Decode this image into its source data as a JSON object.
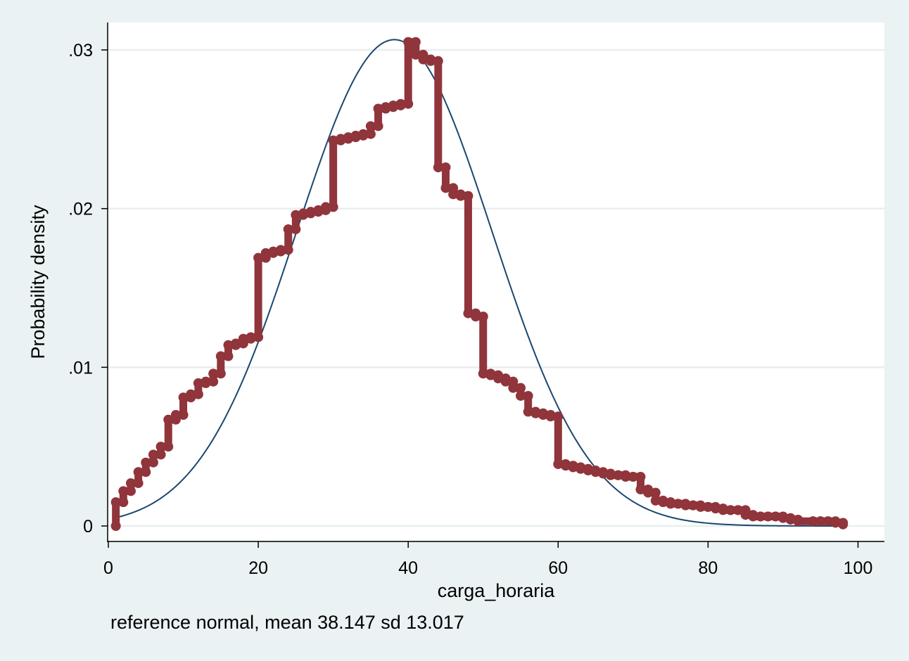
{
  "chart_data": {
    "type": "line",
    "xlabel": "carga_horaria",
    "ylabel": "Probability density",
    "note": "reference normal, mean 38.147 sd 13.017",
    "xlim": [
      0,
      100
    ],
    "ylim": [
      0,
      0.031
    ],
    "x_ticks": [
      0,
      20,
      40,
      60,
      80,
      100
    ],
    "x_tick_labels": [
      "0",
      "20",
      "40",
      "60",
      "80",
      "100"
    ],
    "y_ticks": [
      0,
      0.01,
      0.02,
      0.03
    ],
    "y_tick_labels": [
      "0",
      ".01",
      ".02",
      ".03"
    ],
    "grid": true,
    "normal_reference": {
      "mean": 38.147,
      "sd": 13.017,
      "x_range": [
        1,
        98
      ],
      "color": "#1a476f"
    },
    "series": [
      {
        "color": "#90353b",
        "x": [
          1,
          2,
          3,
          4,
          5,
          6,
          7,
          8,
          9,
          10,
          11,
          12,
          13,
          14,
          15,
          16,
          17,
          18,
          19,
          20,
          21,
          22,
          23,
          24,
          25,
          26,
          27,
          28,
          29,
          30,
          31,
          32,
          33,
          34,
          35,
          36,
          37,
          38,
          39,
          40,
          41,
          42,
          43,
          44,
          45,
          46,
          47,
          48,
          49,
          50,
          51,
          52,
          53,
          54,
          55,
          56,
          57,
          58,
          59,
          60,
          61,
          62,
          63,
          64,
          65,
          66,
          67,
          68,
          69,
          70,
          71,
          72,
          73,
          74,
          75,
          76,
          77,
          78,
          79,
          80,
          81,
          82,
          83,
          84,
          85,
          86,
          87,
          88,
          89,
          90,
          91,
          92,
          94,
          95,
          96,
          97,
          98
        ],
        "y": [
          0.0015,
          0.0022,
          0.0027,
          0.0034,
          0.004,
          0.0045,
          0.005,
          0.0067,
          0.007,
          0.0081,
          0.0083,
          0.009,
          0.0091,
          0.0096,
          0.0107,
          0.0114,
          0.0115,
          0.0118,
          0.0119,
          0.0169,
          0.0172,
          0.0173,
          0.0174,
          0.0187,
          0.0196,
          0.0197,
          0.0198,
          0.0199,
          0.0201,
          0.0243,
          0.0244,
          0.0245,
          0.0246,
          0.0247,
          0.0252,
          0.0263,
          0.0264,
          0.0265,
          0.0266,
          0.0305,
          0.0297,
          0.0294,
          0.0293,
          0.0226,
          0.0213,
          0.0209,
          0.0208,
          0.0134,
          0.0132,
          0.0096,
          0.0095,
          0.0093,
          0.0091,
          0.0087,
          0.0082,
          0.0072,
          0.0071,
          0.007,
          0.0069,
          0.0039,
          0.0038,
          0.0037,
          0.0036,
          0.0035,
          0.0034,
          0.0033,
          0.0032,
          0.0032,
          0.0031,
          0.0031,
          0.0023,
          0.0021,
          0.0016,
          0.0015,
          0.0014,
          0.0014,
          0.0013,
          0.0013,
          0.0012,
          0.0012,
          0.0011,
          0.001,
          0.001,
          0.001,
          0.0007,
          0.0006,
          0.0006,
          0.0006,
          0.0006,
          0.0005,
          0.0004,
          0.0003,
          0.0003,
          0.0003,
          0.0003,
          0.0002,
          0.0001
        ]
      }
    ]
  }
}
